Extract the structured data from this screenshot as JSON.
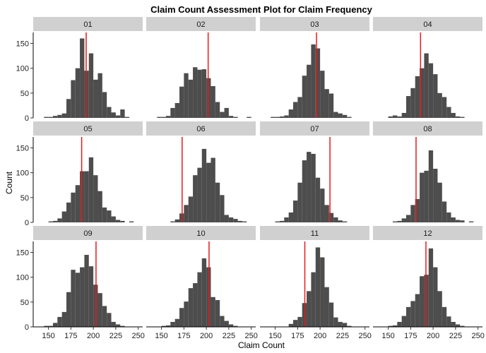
{
  "chart_data": {
    "type": "bar",
    "title": "Claim Count Assessment Plot for Claim Frequency",
    "xlabel": "Claim Count",
    "ylabel": "Count",
    "xlim": [
      133,
      255
    ],
    "ylim": [
      0,
      172
    ],
    "x_ticks": [
      150,
      175,
      200,
      225,
      250
    ],
    "y_ticks": [
      0,
      50,
      100,
      150
    ],
    "grid": false,
    "colors": {
      "bar": "#4d4d4d",
      "reference_line": "#e41a1c",
      "strip_bg": "#d0d0d0"
    },
    "panels": [
      {
        "label": "01",
        "actual": 192,
        "bins": [
          [
            145,
            2
          ],
          [
            150,
            2
          ],
          [
            155,
            4
          ],
          [
            160,
            6
          ],
          [
            165,
            9
          ],
          [
            170,
            38
          ],
          [
            175,
            76
          ],
          [
            180,
            100
          ],
          [
            185,
            160
          ],
          [
            190,
            95
          ],
          [
            195,
            130
          ],
          [
            200,
            77
          ],
          [
            205,
            90
          ],
          [
            210,
            52
          ],
          [
            215,
            22
          ],
          [
            220,
            11
          ],
          [
            225,
            5
          ],
          [
            230,
            17
          ],
          [
            235,
            2
          ]
        ]
      },
      {
        "label": "02",
        "actual": 202,
        "bins": [
          [
            145,
            2
          ],
          [
            150,
            2
          ],
          [
            155,
            4
          ],
          [
            160,
            20
          ],
          [
            165,
            30
          ],
          [
            170,
            63
          ],
          [
            175,
            90
          ],
          [
            180,
            77
          ],
          [
            185,
            102
          ],
          [
            190,
            97
          ],
          [
            195,
            98
          ],
          [
            200,
            80
          ],
          [
            205,
            64
          ],
          [
            210,
            32
          ],
          [
            215,
            12
          ],
          [
            220,
            20
          ],
          [
            225,
            4
          ],
          [
            230,
            2
          ],
          [
            245,
            2
          ]
        ]
      },
      {
        "label": "03",
        "actual": 196,
        "bins": [
          [
            145,
            2
          ],
          [
            150,
            2
          ],
          [
            155,
            3
          ],
          [
            160,
            5
          ],
          [
            165,
            17
          ],
          [
            170,
            32
          ],
          [
            175,
            42
          ],
          [
            180,
            85
          ],
          [
            185,
            107
          ],
          [
            190,
            148
          ],
          [
            195,
            140
          ],
          [
            200,
            95
          ],
          [
            205,
            58
          ],
          [
            210,
            49
          ],
          [
            215,
            12
          ],
          [
            220,
            9
          ],
          [
            225,
            6
          ],
          [
            230,
            2
          ]
        ]
      },
      {
        "label": "04",
        "actual": 186,
        "bins": [
          [
            150,
            3
          ],
          [
            155,
            5
          ],
          [
            160,
            3
          ],
          [
            165,
            10
          ],
          [
            170,
            44
          ],
          [
            175,
            60
          ],
          [
            180,
            84
          ],
          [
            185,
            100
          ],
          [
            190,
            130
          ],
          [
            195,
            110
          ],
          [
            200,
            88
          ],
          [
            205,
            50
          ],
          [
            210,
            42
          ],
          [
            215,
            22
          ],
          [
            220,
            10
          ],
          [
            225,
            3
          ],
          [
            230,
            2
          ]
        ]
      },
      {
        "label": "05",
        "actual": 187,
        "bins": [
          [
            150,
            2
          ],
          [
            155,
            3
          ],
          [
            160,
            8
          ],
          [
            165,
            22
          ],
          [
            170,
            40
          ],
          [
            175,
            60
          ],
          [
            180,
            75
          ],
          [
            185,
            103
          ],
          [
            190,
            103
          ],
          [
            195,
            131
          ],
          [
            200,
            95
          ],
          [
            205,
            63
          ],
          [
            210,
            30
          ],
          [
            215,
            24
          ],
          [
            220,
            12
          ],
          [
            225,
            5
          ],
          [
            230,
            3
          ],
          [
            240,
            2
          ]
        ]
      },
      {
        "label": "06",
        "actual": 173,
        "bins": [
          [
            160,
            2
          ],
          [
            165,
            6
          ],
          [
            170,
            18
          ],
          [
            175,
            35
          ],
          [
            180,
            52
          ],
          [
            185,
            95
          ],
          [
            190,
            110
          ],
          [
            195,
            148
          ],
          [
            200,
            120
          ],
          [
            205,
            130
          ],
          [
            210,
            80
          ],
          [
            215,
            55
          ],
          [
            220,
            15
          ],
          [
            225,
            10
          ],
          [
            230,
            7
          ],
          [
            235,
            3
          ],
          [
            240,
            2
          ]
        ]
      },
      {
        "label": "07",
        "actual": 211,
        "bins": [
          [
            150,
            2
          ],
          [
            155,
            3
          ],
          [
            160,
            10
          ],
          [
            165,
            20
          ],
          [
            170,
            44
          ],
          [
            175,
            80
          ],
          [
            180,
            125
          ],
          [
            185,
            142
          ],
          [
            190,
            138
          ],
          [
            195,
            90
          ],
          [
            200,
            68
          ],
          [
            205,
            35
          ],
          [
            210,
            19
          ],
          [
            215,
            10
          ],
          [
            220,
            4
          ],
          [
            225,
            2
          ]
        ]
      },
      {
        "label": "08",
        "actual": 181,
        "bins": [
          [
            155,
            2
          ],
          [
            160,
            3
          ],
          [
            165,
            8
          ],
          [
            170,
            15
          ],
          [
            175,
            35
          ],
          [
            180,
            47
          ],
          [
            185,
            100
          ],
          [
            190,
            104
          ],
          [
            195,
            145
          ],
          [
            200,
            108
          ],
          [
            205,
            80
          ],
          [
            210,
            42
          ],
          [
            215,
            20
          ],
          [
            220,
            10
          ],
          [
            225,
            5
          ],
          [
            230,
            4
          ],
          [
            240,
            2
          ]
        ]
      },
      {
        "label": "09",
        "actual": 203,
        "bins": [
          [
            145,
            2
          ],
          [
            150,
            2
          ],
          [
            155,
            8
          ],
          [
            160,
            20
          ],
          [
            165,
            30
          ],
          [
            170,
            70
          ],
          [
            175,
            115
          ],
          [
            180,
            109
          ],
          [
            185,
            120
          ],
          [
            190,
            145
          ],
          [
            195,
            122
          ],
          [
            200,
            85
          ],
          [
            205,
            68
          ],
          [
            210,
            42
          ],
          [
            215,
            28
          ],
          [
            220,
            10
          ],
          [
            225,
            5
          ],
          [
            230,
            2
          ]
        ]
      },
      {
        "label": "10",
        "actual": 203,
        "bins": [
          [
            150,
            2
          ],
          [
            155,
            3
          ],
          [
            160,
            10
          ],
          [
            165,
            16
          ],
          [
            170,
            38
          ],
          [
            175,
            51
          ],
          [
            180,
            78
          ],
          [
            185,
            88
          ],
          [
            190,
            110
          ],
          [
            195,
            138
          ],
          [
            200,
            120
          ],
          [
            205,
            60
          ],
          [
            210,
            54
          ],
          [
            215,
            22
          ],
          [
            220,
            12
          ],
          [
            225,
            5
          ],
          [
            230,
            2
          ]
        ]
      },
      {
        "label": "11",
        "actual": 183,
        "bins": [
          [
            165,
            6
          ],
          [
            170,
            14
          ],
          [
            175,
            20
          ],
          [
            180,
            48
          ],
          [
            185,
            72
          ],
          [
            190,
            110
          ],
          [
            195,
            160
          ],
          [
            200,
            140
          ],
          [
            205,
            80
          ],
          [
            210,
            49
          ],
          [
            215,
            19
          ],
          [
            220,
            10
          ],
          [
            225,
            8
          ],
          [
            230,
            2
          ]
        ]
      },
      {
        "label": "12",
        "actual": 192,
        "bins": [
          [
            150,
            2
          ],
          [
            155,
            3
          ],
          [
            160,
            10
          ],
          [
            165,
            22
          ],
          [
            170,
            40
          ],
          [
            175,
            52
          ],
          [
            180,
            66
          ],
          [
            185,
            102
          ],
          [
            190,
            105
          ],
          [
            195,
            158
          ],
          [
            200,
            120
          ],
          [
            205,
            72
          ],
          [
            210,
            40
          ],
          [
            215,
            21
          ],
          [
            220,
            10
          ],
          [
            225,
            5
          ],
          [
            230,
            2
          ]
        ]
      }
    ]
  }
}
